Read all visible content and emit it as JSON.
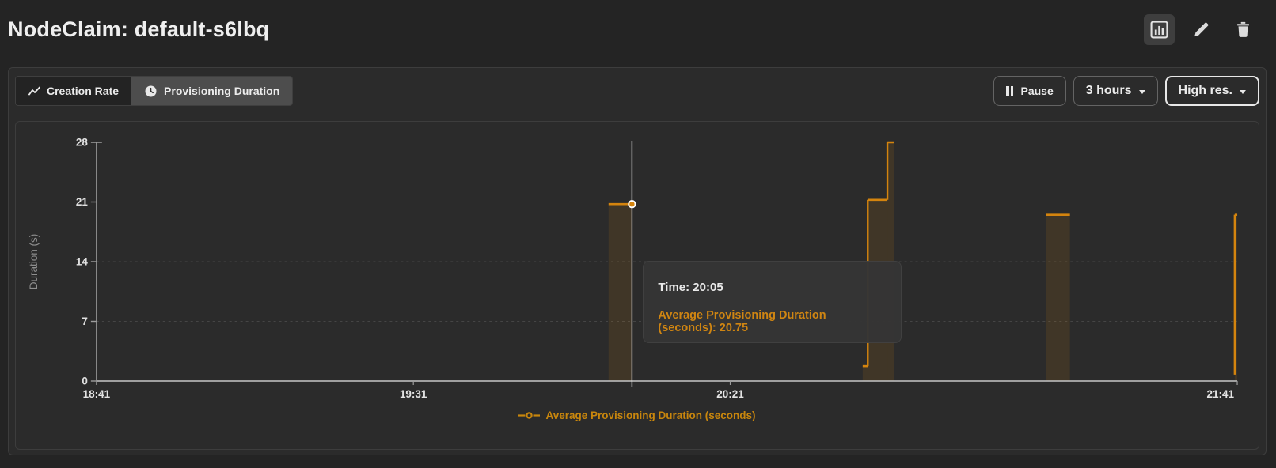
{
  "header": {
    "title": "NodeClaim: default-s6lbq",
    "actions": [
      {
        "name": "chart-view",
        "icon": "bar-chart-icon",
        "active": true
      },
      {
        "name": "edit",
        "icon": "pencil-icon"
      },
      {
        "name": "delete",
        "icon": "trash-icon"
      }
    ]
  },
  "toolbar": {
    "tabs": [
      {
        "label": "Creation Rate",
        "icon": "trend-line-icon",
        "selected": false
      },
      {
        "label": "Provisioning Duration",
        "icon": "clock-icon",
        "selected": true
      }
    ],
    "pause_label": "Pause",
    "range_label": "3 hours",
    "resolution_label": "High res."
  },
  "chart_data": {
    "type": "area",
    "variant": "step",
    "title": "",
    "ylabel": "Duration (s)",
    "ylim": [
      0,
      28
    ],
    "yticks": [
      0,
      7,
      14,
      21,
      28
    ],
    "x_range_minutes": [
      0,
      180
    ],
    "x_start_label": "18:41",
    "xticks": [
      {
        "label": "18:41",
        "minute": 0,
        "anchor": "middle"
      },
      {
        "label": "19:31",
        "minute": 50,
        "anchor": "middle"
      },
      {
        "label": "20:21",
        "minute": 100,
        "anchor": "middle"
      },
      {
        "label": "21:41",
        "minute": 180,
        "anchor": "end"
      }
    ],
    "grid": "dashed-horizontal",
    "series": [
      {
        "name": "Average Provisioning Duration (seconds)",
        "color": "#d4840e",
        "fill_opacity": 0.13,
        "segments": [
          {
            "from_minute": 80.8,
            "to_minute": 84.5,
            "value": 20.75
          },
          {
            "from_minute": 120.9,
            "to_minute": 121.7,
            "value": 1.75
          },
          {
            "from_minute": 121.7,
            "to_minute": 124.8,
            "value": 21.25,
            "rise_from": 1.75
          },
          {
            "from_minute": 124.8,
            "to_minute": 125.8,
            "value": 28,
            "rise_from": 21.25
          },
          {
            "from_minute": 149.8,
            "to_minute": 153.6,
            "value": 19.5
          },
          {
            "from_minute": 179.6,
            "to_minute": 180,
            "value": 19.5,
            "rise_from": 0.75
          }
        ]
      }
    ],
    "hover": {
      "minute": 84.5,
      "value": 20.75,
      "time": "20:05"
    },
    "tooltip": {
      "time_line": "Time: 20:05",
      "series_line": "Average Provisioning Duration (seconds): 20.75"
    },
    "legend_label": "Average Provisioning Duration (seconds)",
    "legend_position": "bottom-center"
  },
  "colors": {
    "page_bg": "#242424",
    "card_bg": "#2b2b2b",
    "border": "#3d3d3d",
    "accent_orange": "#d4840e",
    "legend_orange": "#c8860d",
    "tooltip_orange": "#cf8512",
    "grid": "#454545",
    "axis": "#bdbdbd",
    "cursor": "#efefef",
    "tab_selected_bg": "#4d4d4d"
  }
}
